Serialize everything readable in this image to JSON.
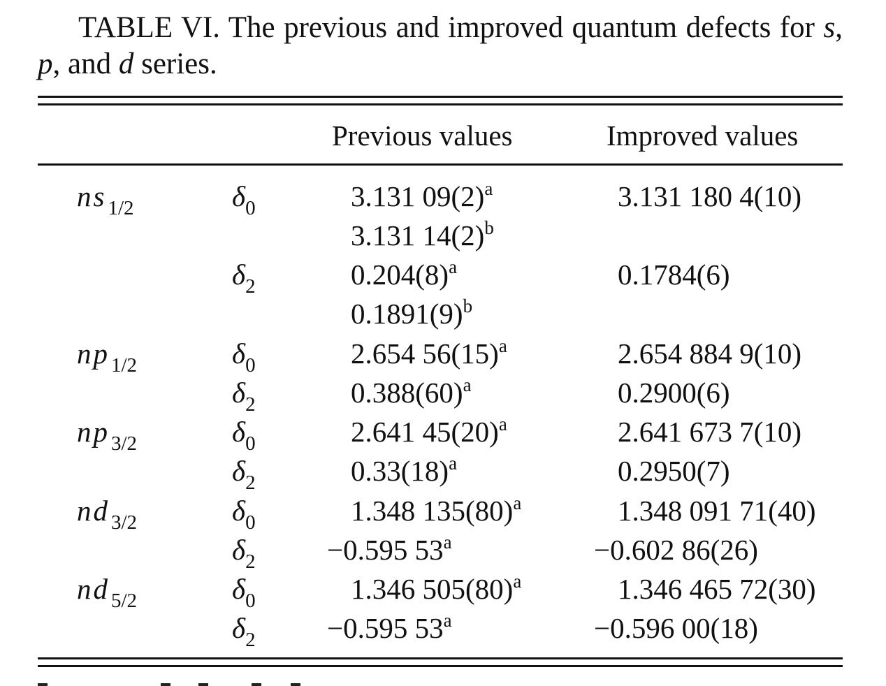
{
  "caption": {
    "label": "TABLE VI.",
    "line1_text": "The previous and improved quantum defects for",
    "var_s": "s",
    "var_p": "p",
    "comma": ",",
    "line2_mid": ", and",
    "var_d": "d",
    "line2_end": "series."
  },
  "headers": {
    "previous": "Previous values",
    "improved": "Improved values"
  },
  "series": [
    {
      "name": "ns",
      "sub": "1/2"
    },
    {
      "name": "np",
      "sub": "1/2"
    },
    {
      "name": "np",
      "sub": "3/2"
    },
    {
      "name": "nd",
      "sub": "3/2"
    },
    {
      "name": "nd",
      "sub": "5/2"
    }
  ],
  "params": {
    "delta": "δ",
    "sub0": "0",
    "sub2": "2"
  },
  "rows": [
    {
      "prev": "3.131 09(2)",
      "prev_note": "a",
      "impr": "3.131 180 4(10)"
    },
    {
      "prev": "3.131 14(2)",
      "prev_note": "b",
      "impr": ""
    },
    {
      "prev": "0.204(8)",
      "prev_note": "a",
      "impr": "0.1784(6)"
    },
    {
      "prev": "0.1891(9)",
      "prev_note": "b",
      "impr": ""
    },
    {
      "prev": "2.654 56(15)",
      "prev_note": "a",
      "impr": "2.654 884 9(10)"
    },
    {
      "prev": "0.388(60)",
      "prev_note": "a",
      "impr": "0.2900(6)"
    },
    {
      "prev": "2.641 45(20)",
      "prev_note": "a",
      "impr": "2.641 673 7(10)"
    },
    {
      "prev": "0.33(18)",
      "prev_note": "a",
      "impr": "0.2950(7)"
    },
    {
      "prev": "1.348 135(80)",
      "prev_note": "a",
      "impr": "1.348 091 71(40)"
    },
    {
      "prev": "−0.595 53",
      "prev_note": "a",
      "impr": "−0.602 86(26)"
    },
    {
      "prev": "1.346 505(80)",
      "prev_note": "a",
      "impr": "1.346 465 72(30)"
    },
    {
      "prev": "−0.595 53",
      "prev_note": "a",
      "impr": "−0.596 00(18)"
    }
  ]
}
